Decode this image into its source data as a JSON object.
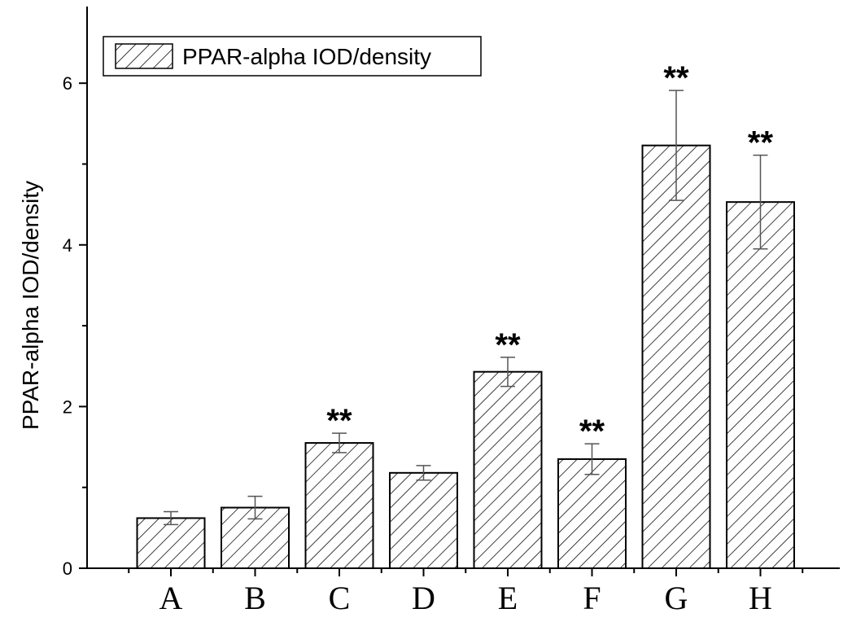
{
  "chart_data": {
    "type": "bar",
    "categories": [
      "A",
      "B",
      "C",
      "D",
      "E",
      "F",
      "G",
      "H"
    ],
    "values": [
      0.62,
      0.75,
      1.55,
      1.18,
      2.43,
      1.35,
      5.23,
      4.53
    ],
    "errors": [
      0.08,
      0.14,
      0.12,
      0.09,
      0.18,
      0.19,
      0.68,
      0.58
    ],
    "significance": [
      "",
      "",
      "**",
      "",
      "**",
      "**",
      "**",
      "**"
    ],
    "series": [
      {
        "name": "PPAR-alpha IOD/density"
      }
    ],
    "ylabel": "PPAR-alpha IOD/density",
    "xlabel": "",
    "ylim": [
      0,
      7
    ],
    "yticks": [
      0,
      2,
      4,
      6
    ],
    "pattern": "diagonal-hatch",
    "legend": "top-left",
    "grid": false
  }
}
